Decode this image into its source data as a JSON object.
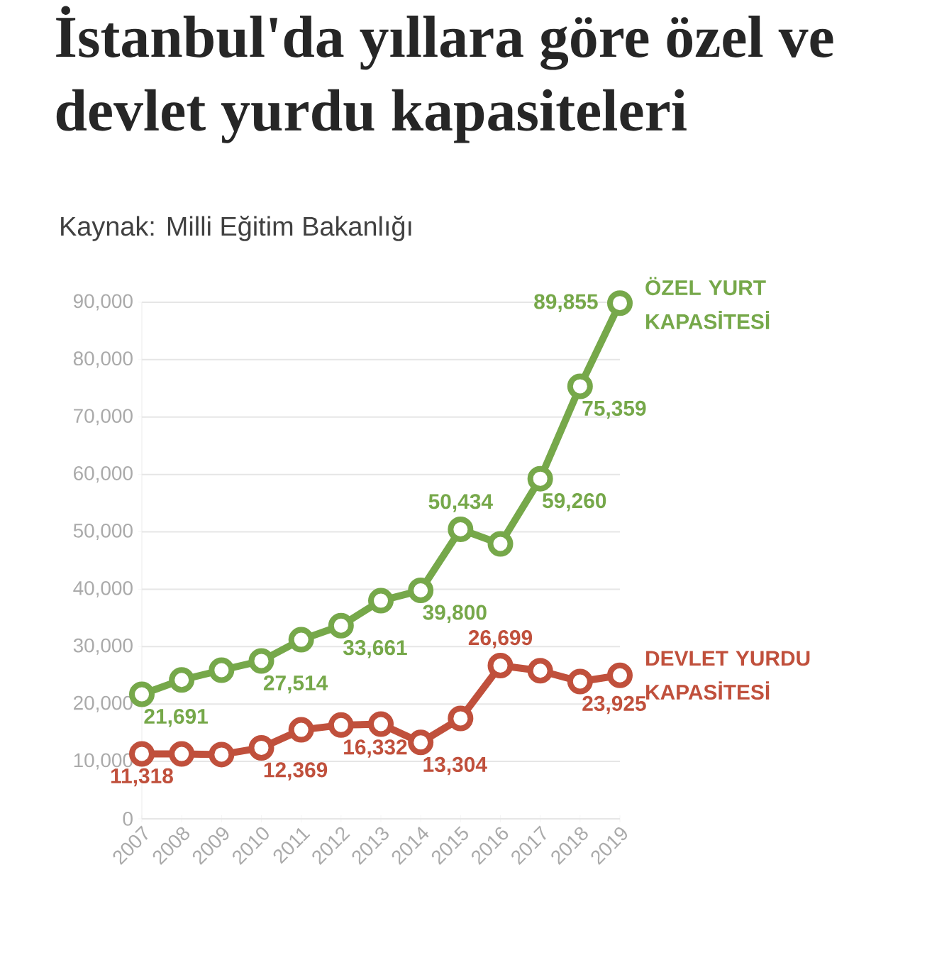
{
  "chart_data": {
    "type": "line",
    "title": "İstanbul'da yıllara göre özel ve devlet yurdu kapasiteleri",
    "subtitle": "Kaynak: Milli Eğitim Bakanlığı",
    "categories": [
      "2007",
      "2008",
      "2009",
      "2010",
      "2011",
      "2012",
      "2013",
      "2014",
      "2015",
      "2016",
      "2017",
      "2018",
      "2019"
    ],
    "series": [
      {
        "name": "ÖZEL YURT KAPASİTESİ",
        "color": "#76a84a",
        "values": [
          21691,
          24200,
          25900,
          27514,
          31200,
          33661,
          38000,
          39800,
          50434,
          47900,
          59260,
          75359,
          89855
        ],
        "value_labels": [
          "21,691",
          null,
          null,
          "27,514",
          null,
          "33,661",
          null,
          "39,800",
          "50,434",
          null,
          "59,260",
          "75,359",
          "89,855"
        ]
      },
      {
        "name": "DEVLET YURDU KAPASİTESİ",
        "color": "#c0503c",
        "values": [
          11318,
          11300,
          11200,
          12369,
          15500,
          16332,
          16500,
          13304,
          17500,
          26699,
          25800,
          23925,
          25000
        ],
        "value_labels": [
          "11,318",
          null,
          null,
          "12,369",
          null,
          "16,332",
          null,
          "13,304",
          null,
          "26,699",
          null,
          "23,925",
          null
        ]
      }
    ],
    "ylim": [
      0,
      90000
    ],
    "yticks": [
      {
        "value": 0,
        "label": "0"
      },
      {
        "value": 10000,
        "label": "10,000"
      },
      {
        "value": 20000,
        "label": "20,000"
      },
      {
        "value": 30000,
        "label": "30,000"
      },
      {
        "value": 40000,
        "label": "40,000"
      },
      {
        "value": 50000,
        "label": "50,000"
      },
      {
        "value": 60000,
        "label": "60,000"
      },
      {
        "value": 70000,
        "label": "70,000"
      },
      {
        "value": 80000,
        "label": "80,000"
      },
      {
        "value": 90000,
        "label": "90,000"
      }
    ],
    "grid": "y",
    "marker": "circle",
    "line_style": "solid"
  }
}
